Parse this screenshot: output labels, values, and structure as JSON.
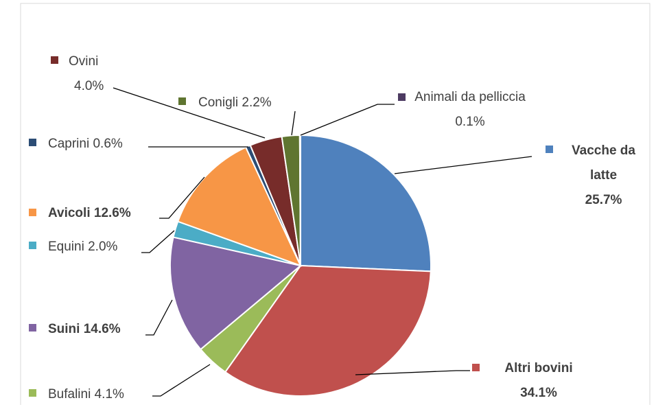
{
  "chart_data": {
    "type": "pie",
    "categories": [
      "Vacche da latte",
      "Altri bovini",
      "Bufalini",
      "Suini",
      "Equini",
      "Avicoli",
      "Caprini",
      "Ovini",
      "Conigli",
      "Animali da pelliccia"
    ],
    "values": [
      25.7,
      34.1,
      4.1,
      14.6,
      2.0,
      12.6,
      0.6,
      4.0,
      2.2,
      0.1
    ],
    "value_labels": [
      "25.7%",
      "34.1%",
      "4.1%",
      "14.6%",
      "2.0%",
      "12.6%",
      "0.6%",
      "4.0%",
      "2.2%",
      "0.1%"
    ],
    "colors": [
      "#4f81bd",
      "#c0504d",
      "#9bbb59",
      "#8064a2",
      "#4bacc6",
      "#f79646",
      "#2c4d75",
      "#772c2a",
      "#5f7530",
      "#4d3b62"
    ]
  }
}
